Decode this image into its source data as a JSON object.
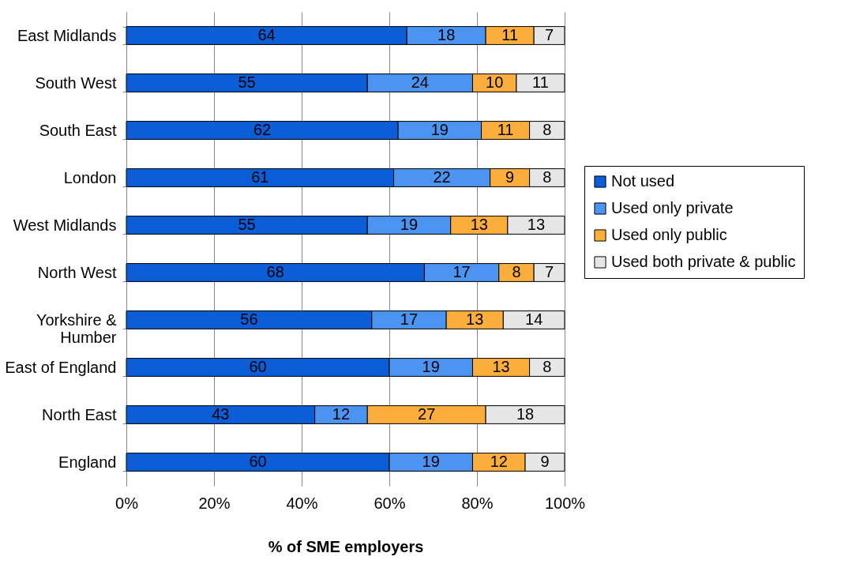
{
  "chart_data": {
    "type": "bar",
    "orientation": "horizontal",
    "stacked": true,
    "data_labels": true,
    "grid": "x",
    "legend": "right",
    "xlabel": "% of SME employers",
    "categories": [
      "East Midlands",
      "South West",
      "South East",
      "London",
      "West Midlands",
      "North West",
      "Yorkshire & Humber",
      "East of England",
      "North East",
      "England"
    ],
    "series": [
      {
        "name": "Not used",
        "color": "#0b5ed8",
        "values": [
          64,
          55,
          62,
          61,
          55,
          68,
          56,
          60,
          43,
          60
        ]
      },
      {
        "name": "Used only private",
        "color": "#4b94f2",
        "values": [
          18,
          24,
          19,
          22,
          19,
          17,
          17,
          19,
          12,
          19
        ]
      },
      {
        "name": "Used only public",
        "color": "#fbae3c",
        "values": [
          11,
          10,
          11,
          9,
          13,
          8,
          13,
          13,
          27,
          12
        ]
      },
      {
        "name": "Used both private & public",
        "color": "#e6e6e6",
        "values": [
          7,
          11,
          8,
          8,
          13,
          7,
          14,
          8,
          18,
          9
        ]
      }
    ],
    "xlim": [
      0,
      100
    ],
    "xticks": [
      {
        "value": 0,
        "label": "0%"
      },
      {
        "value": 20,
        "label": "20%"
      },
      {
        "value": 40,
        "label": "40%"
      },
      {
        "value": 60,
        "label": "60%"
      },
      {
        "value": 80,
        "label": "80%"
      },
      {
        "value": 100,
        "label": "100%"
      }
    ]
  }
}
